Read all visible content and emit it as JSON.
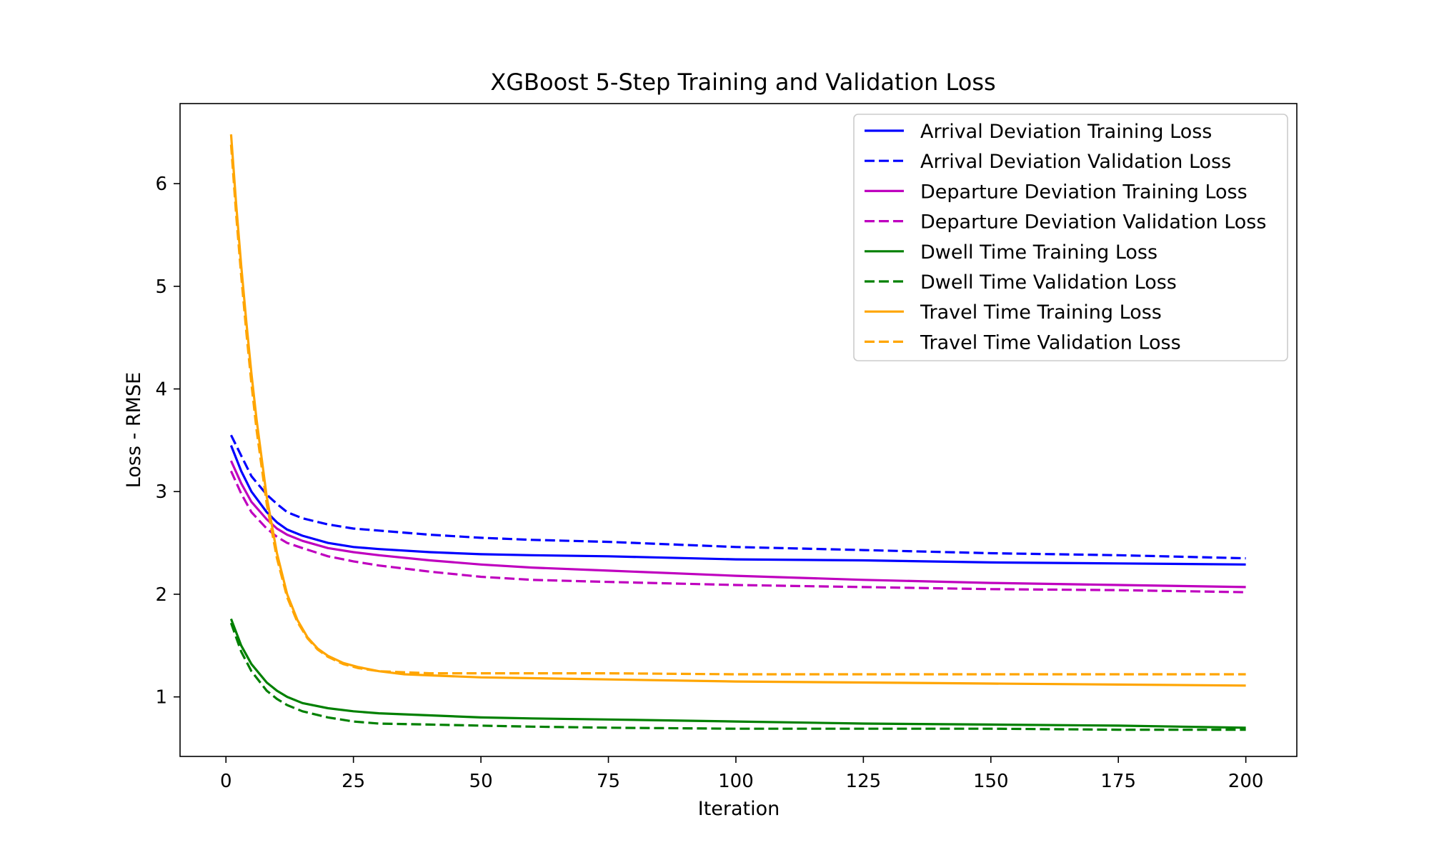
{
  "chart_data": {
    "type": "line",
    "title": "XGBoost 5-Step Training and Validation Loss",
    "xlabel": "Iteration",
    "ylabel": "Loss - RMSE",
    "xlim": [
      -9,
      210
    ],
    "ylim": [
      0.42,
      6.78
    ],
    "xticks": [
      0,
      25,
      50,
      75,
      100,
      125,
      150,
      175,
      200
    ],
    "yticks": [
      1,
      2,
      3,
      4,
      5,
      6
    ],
    "grid": false,
    "legend": "top-right",
    "series": [
      {
        "name": "Arrival Deviation Training Loss",
        "color": "#0000ff",
        "dash": "solid",
        "x": [
          1,
          3,
          5,
          8,
          10,
          12,
          15,
          20,
          25,
          30,
          40,
          50,
          60,
          75,
          100,
          125,
          150,
          175,
          200
        ],
        "y": [
          3.45,
          3.2,
          3.0,
          2.8,
          2.7,
          2.63,
          2.57,
          2.5,
          2.46,
          2.44,
          2.41,
          2.39,
          2.38,
          2.37,
          2.34,
          2.33,
          2.31,
          2.3,
          2.29
        ]
      },
      {
        "name": "Arrival Deviation Validation Loss",
        "color": "#0000ff",
        "dash": "dashed",
        "x": [
          1,
          3,
          5,
          8,
          10,
          12,
          15,
          20,
          25,
          30,
          40,
          50,
          60,
          75,
          100,
          125,
          150,
          175,
          200
        ],
        "y": [
          3.55,
          3.35,
          3.15,
          2.97,
          2.88,
          2.8,
          2.74,
          2.68,
          2.64,
          2.62,
          2.58,
          2.55,
          2.53,
          2.51,
          2.46,
          2.43,
          2.4,
          2.38,
          2.35
        ]
      },
      {
        "name": "Departure Deviation Training Loss",
        "color": "#bf00bf",
        "dash": "solid",
        "x": [
          1,
          3,
          5,
          8,
          10,
          12,
          15,
          20,
          25,
          30,
          40,
          50,
          60,
          75,
          100,
          125,
          150,
          175,
          200
        ],
        "y": [
          3.3,
          3.08,
          2.9,
          2.73,
          2.64,
          2.58,
          2.52,
          2.45,
          2.41,
          2.38,
          2.33,
          2.29,
          2.26,
          2.23,
          2.18,
          2.14,
          2.11,
          2.09,
          2.07
        ]
      },
      {
        "name": "Departure Deviation Validation Loss",
        "color": "#bf00bf",
        "dash": "dashed",
        "x": [
          1,
          3,
          5,
          8,
          10,
          12,
          15,
          20,
          25,
          30,
          40,
          50,
          60,
          75,
          100,
          125,
          150,
          175,
          200
        ],
        "y": [
          3.2,
          2.98,
          2.8,
          2.64,
          2.56,
          2.5,
          2.45,
          2.37,
          2.32,
          2.28,
          2.22,
          2.17,
          2.14,
          2.12,
          2.09,
          2.07,
          2.05,
          2.04,
          2.02
        ]
      },
      {
        "name": "Dwell Time Training Loss",
        "color": "#008000",
        "dash": "solid",
        "x": [
          1,
          3,
          5,
          8,
          10,
          12,
          15,
          20,
          25,
          30,
          40,
          50,
          60,
          75,
          100,
          125,
          150,
          175,
          200
        ],
        "y": [
          1.76,
          1.5,
          1.32,
          1.14,
          1.06,
          1.0,
          0.94,
          0.89,
          0.86,
          0.84,
          0.82,
          0.8,
          0.79,
          0.78,
          0.76,
          0.74,
          0.73,
          0.72,
          0.7
        ]
      },
      {
        "name": "Dwell Time Validation Loss",
        "color": "#008000",
        "dash": "dashed",
        "x": [
          1,
          3,
          5,
          8,
          10,
          12,
          15,
          20,
          25,
          30,
          40,
          50,
          60,
          75,
          100,
          125,
          150,
          175,
          200
        ],
        "y": [
          1.72,
          1.44,
          1.25,
          1.06,
          0.98,
          0.92,
          0.86,
          0.8,
          0.76,
          0.74,
          0.73,
          0.72,
          0.71,
          0.7,
          0.69,
          0.69,
          0.69,
          0.68,
          0.68
        ]
      },
      {
        "name": "Travel Time Training Loss",
        "color": "#ffa500",
        "dash": "solid",
        "x": [
          1,
          2,
          3,
          4,
          5,
          6,
          8,
          10,
          12,
          14,
          16,
          18,
          20,
          23,
          26,
          30,
          35,
          40,
          50,
          75,
          100,
          125,
          150,
          175,
          200
        ],
        "y": [
          6.48,
          5.8,
          5.2,
          4.65,
          4.15,
          3.7,
          2.95,
          2.4,
          2.0,
          1.75,
          1.58,
          1.47,
          1.4,
          1.33,
          1.29,
          1.25,
          1.22,
          1.21,
          1.19,
          1.17,
          1.15,
          1.14,
          1.13,
          1.12,
          1.11
        ]
      },
      {
        "name": "Travel Time Validation Loss",
        "color": "#ffa500",
        "dash": "dashed",
        "x": [
          1,
          2,
          3,
          4,
          5,
          6,
          8,
          10,
          12,
          14,
          16,
          18,
          20,
          23,
          26,
          30,
          35,
          40,
          50,
          75,
          100,
          125,
          150,
          175,
          200
        ],
        "y": [
          6.38,
          5.7,
          5.1,
          4.55,
          4.05,
          3.6,
          2.88,
          2.35,
          1.97,
          1.73,
          1.57,
          1.46,
          1.39,
          1.32,
          1.28,
          1.25,
          1.24,
          1.23,
          1.23,
          1.23,
          1.22,
          1.22,
          1.22,
          1.22,
          1.22
        ]
      }
    ]
  }
}
